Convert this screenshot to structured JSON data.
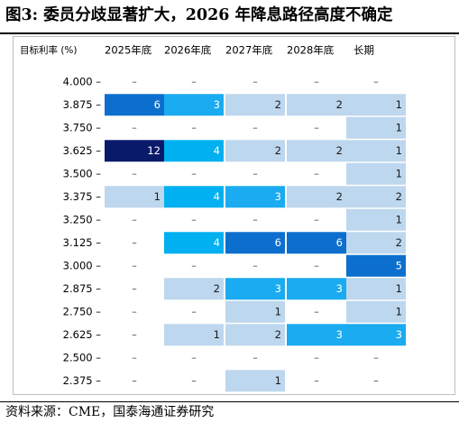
{
  "figure": {
    "title": "图3:  委员分歧显著扩大，2026 年降息路径高度不确定",
    "source": "资料来源：CME，国泰海通证券研究"
  },
  "chart_data": {
    "type": "heatmap",
    "corner_label": "目标利率 (%)",
    "columns": [
      "2025年底",
      "2026年底",
      "2027年底",
      "2028年底",
      "长期"
    ],
    "rows": [
      "4.000",
      "3.875",
      "3.750",
      "3.625",
      "3.500",
      "3.375",
      "3.250",
      "3.125",
      "3.000",
      "2.875",
      "2.750",
      "2.625",
      "2.500",
      "2.375"
    ],
    "values": [
      [
        null,
        null,
        null,
        null,
        null
      ],
      [
        6,
        3,
        2,
        2,
        1
      ],
      [
        null,
        null,
        null,
        null,
        1
      ],
      [
        12,
        4,
        2,
        2,
        1
      ],
      [
        null,
        null,
        null,
        null,
        1
      ],
      [
        1,
        4,
        3,
        2,
        2
      ],
      [
        null,
        null,
        null,
        null,
        1
      ],
      [
        null,
        4,
        6,
        6,
        2
      ],
      [
        null,
        null,
        null,
        null,
        5
      ],
      [
        null,
        2,
        3,
        3,
        1
      ],
      [
        null,
        null,
        1,
        null,
        1
      ],
      [
        null,
        1,
        2,
        3,
        3
      ],
      [
        null,
        null,
        null,
        null,
        null
      ],
      [
        null,
        null,
        1,
        null,
        null
      ]
    ],
    "empty_marker": "–",
    "color_scale": [
      {
        "max": 2,
        "color": "#bdd7ee"
      },
      {
        "max": 3,
        "color": "#1aabf0"
      },
      {
        "max": 4,
        "color": "#00b0f0"
      },
      {
        "max": 6,
        "color": "#0d6fcd"
      },
      {
        "max": 99,
        "color": "#0a1a6a"
      }
    ]
  }
}
